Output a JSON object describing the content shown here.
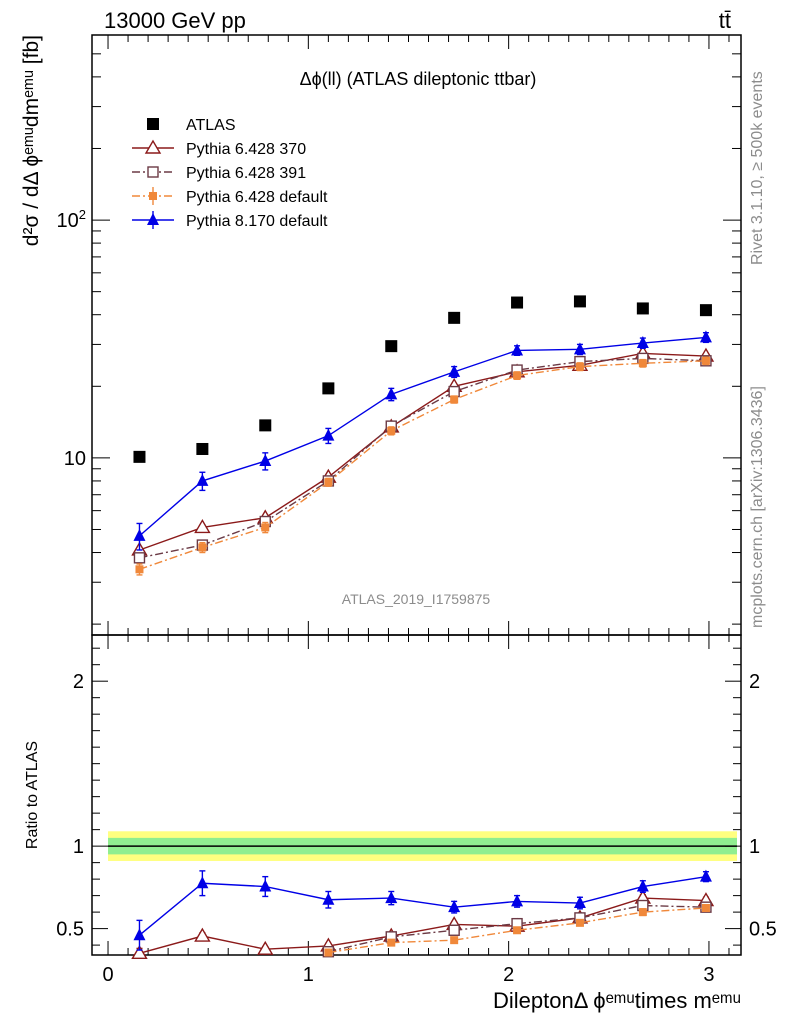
{
  "header": {
    "left": "13000 GeV pp",
    "right": "tt̄"
  },
  "side_labels": {
    "rivet": "Rivet 3.1.10, ≥ 500k events",
    "mcplots": "mcplots.cern.ch [arXiv:1306.3436]"
  },
  "watermark": "ATLAS_2019_I1759875",
  "chart_data": [
    {
      "panel": "main",
      "type": "scatter",
      "title": "Δϕ(ll) (ATLAS dileptonic ttbar)",
      "ylabel": "d²σ / dΔ ϕᵉᵐᵘdmᵉᵐᵘ [fb]",
      "yscale": "log",
      "xlim": [
        -0.08,
        3.16
      ],
      "ylim": [
        1.8,
        600
      ],
      "y_tick_labels": [
        "10",
        "10²"
      ],
      "x": [
        0.157,
        0.471,
        0.785,
        1.1,
        1.414,
        1.728,
        2.042,
        2.356,
        2.67,
        2.985
      ],
      "legend_position": "top-left",
      "series": [
        {
          "name": "ATLAS",
          "marker": "square-filled",
          "line": "none",
          "color": "#000000",
          "values": [
            10.1,
            10.9,
            13.7,
            19.6,
            29.5,
            38.8,
            45.0,
            45.5,
            42.5,
            41.8
          ],
          "errors": [
            0,
            0,
            0,
            0,
            0,
            0,
            0,
            0,
            0,
            0
          ]
        },
        {
          "name": "Pythia 6.428 370",
          "marker": "triangle-open",
          "line": "solid",
          "color": "#8b1a1a",
          "values": [
            4.1,
            5.1,
            5.6,
            8.3,
            13.5,
            20.0,
            23.0,
            24.5,
            27.5,
            26.8
          ],
          "errors": [
            0,
            0,
            0,
            0,
            0,
            0,
            0,
            0,
            0,
            0
          ]
        },
        {
          "name": "Pythia 6.428 391",
          "marker": "square-open",
          "line": "dashdot",
          "color": "#6b3a45",
          "values": [
            3.8,
            4.3,
            5.4,
            8.0,
            13.6,
            19.0,
            23.4,
            25.4,
            26.2,
            25.6
          ],
          "errors": [
            0,
            0,
            0,
            0,
            0,
            0,
            0,
            0,
            0,
            0
          ]
        },
        {
          "name": "Pythia 6.428 default",
          "marker": "square-filled",
          "line": "dashdot",
          "color": "#f0883a",
          "values": [
            3.4,
            4.2,
            5.1,
            7.9,
            13.0,
            17.6,
            22.2,
            24.2,
            25.0,
            25.6
          ],
          "errors": [
            0.18,
            0.2,
            0.25,
            0.3,
            0.5,
            0.6,
            0.8,
            0.9,
            0.9,
            0.9
          ]
        },
        {
          "name": "Pythia 8.170 default",
          "marker": "triangle-filled",
          "line": "solid",
          "color": "#0000e6",
          "values": [
            4.7,
            8.0,
            9.7,
            12.4,
            18.5,
            23.0,
            28.3,
            28.6,
            30.4,
            32.1
          ],
          "errors": [
            0.6,
            0.7,
            0.8,
            0.9,
            1.1,
            1.2,
            1.3,
            1.4,
            1.5,
            1.5
          ]
        }
      ]
    },
    {
      "panel": "ratio",
      "type": "scatter",
      "ylabel": "Ratio to ATLAS",
      "xlabel": "DileptonΔ ϕᵉᵐᵘtimes mᵉᵐᵘ",
      "ylim": [
        0.34,
        2.28
      ],
      "xlim": [
        -0.08,
        3.16
      ],
      "x_tick_labels": [
        "0",
        "1",
        "2",
        "3"
      ],
      "y_tick_labels": [
        "0.5",
        "1",
        "2"
      ],
      "x": [
        0.157,
        0.471,
        0.785,
        1.1,
        1.414,
        1.728,
        2.042,
        2.356,
        2.67,
        2.985
      ],
      "reference_band": {
        "inner": [
          0.95,
          1.05
        ],
        "outer": [
          0.91,
          1.09
        ],
        "inner_color": "#90ee90",
        "outer_color": "#ffff80"
      },
      "series": [
        {
          "name": "Pythia 6.428 370",
          "color": "#8b1a1a",
          "marker": "triangle-open",
          "line": "solid",
          "values": [
            0.35,
            0.455,
            0.375,
            0.395,
            0.455,
            0.525,
            0.515,
            0.565,
            0.685,
            0.67
          ],
          "errors": [
            0.03,
            0.02,
            0.015,
            0.015,
            0.015,
            0.015,
            0.015,
            0.015,
            0.02,
            0.02
          ]
        },
        {
          "name": "Pythia 6.428 391",
          "color": "#6b3a45",
          "marker": "square-open",
          "line": "dashdot",
          "values": [
            0.3,
            0.3,
            0.33,
            0.36,
            0.45,
            0.49,
            0.53,
            0.565,
            0.64,
            0.63
          ],
          "errors": [
            0.02,
            0.02,
            0.015,
            0.015,
            0.015,
            0.015,
            0.015,
            0.015,
            0.02,
            0.02
          ]
        },
        {
          "name": "Pythia 6.428 default",
          "color": "#f0883a",
          "marker": "square-filled",
          "line": "dashdot",
          "values": [
            0.3,
            0.3,
            0.33,
            0.355,
            0.415,
            0.43,
            0.49,
            0.535,
            0.6,
            0.625
          ],
          "errors": [
            0.02,
            0.02,
            0.015,
            0.015,
            0.015,
            0.015,
            0.015,
            0.015,
            0.02,
            0.02
          ]
        },
        {
          "name": "Pythia 8.170 default",
          "color": "#0000e6",
          "marker": "triangle-filled",
          "line": "solid",
          "values": [
            0.46,
            0.775,
            0.755,
            0.675,
            0.685,
            0.63,
            0.665,
            0.655,
            0.755,
            0.815
          ],
          "errors": [
            0.09,
            0.075,
            0.06,
            0.05,
            0.04,
            0.035,
            0.035,
            0.035,
            0.035,
            0.03
          ]
        }
      ]
    }
  ]
}
